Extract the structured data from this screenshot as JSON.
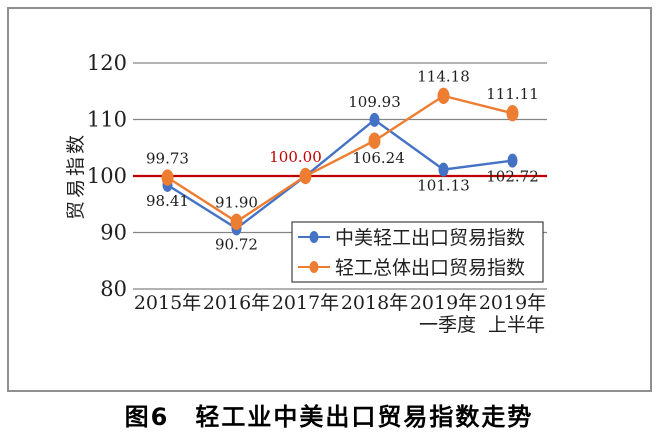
{
  "figure": {
    "caption": "图6　轻工业中美出口贸易指数走势"
  },
  "chart_data": {
    "type": "line",
    "title": "图6　轻工业中美出口贸易指数走势",
    "xlabel": "",
    "ylabel": "贸易指数",
    "ylim": [
      80,
      120
    ],
    "yticks": [
      80,
      90,
      100,
      110,
      120
    ],
    "grid": "horizontal",
    "gridline_color": "#848484",
    "baseline": {
      "value": 100,
      "color": "#c00000"
    },
    "categories": [
      {
        "line1": "2015年",
        "line2": ""
      },
      {
        "line1": "2016年",
        "line2": ""
      },
      {
        "line1": "2017年",
        "line2": ""
      },
      {
        "line1": "2018年",
        "line2": ""
      },
      {
        "line1": "2019年",
        "line2": "一季度"
      },
      {
        "line1": "2019年",
        "line2": "上半年"
      }
    ],
    "series": [
      {
        "name": "中美轻工出口贸易指数",
        "color": "#4472c4",
        "values": [
          98.41,
          90.72,
          100.0,
          109.93,
          101.13,
          102.72
        ],
        "labels": [
          {
            "text": "98.41",
            "pos": "below"
          },
          {
            "text": "90.72",
            "pos": "below"
          },
          {
            "text": "",
            "pos": "none"
          },
          {
            "text": "109.93",
            "pos": "above"
          },
          {
            "text": "101.13",
            "pos": "below"
          },
          {
            "text": "102.72",
            "pos": "below"
          }
        ]
      },
      {
        "name": "轻工总体出口贸易指数",
        "color": "#ed7d31",
        "values": [
          99.73,
          91.9,
          100.0,
          106.24,
          114.18,
          111.11
        ],
        "labels": [
          {
            "text": "99.73",
            "pos": "above"
          },
          {
            "text": "91.90",
            "pos": "above"
          },
          {
            "text": "100.00",
            "pos": "above",
            "dx": -10,
            "color": "#c00000"
          },
          {
            "text": "106.24",
            "pos": "below",
            "dx": 4
          },
          {
            "text": "114.18",
            "pos": "above"
          },
          {
            "text": "111.11",
            "pos": "above"
          }
        ]
      }
    ],
    "legend": {
      "position": "inside-bottom-right",
      "entries": [
        "中美轻工出口贸易指数",
        "轻工总体出口贸易指数"
      ]
    }
  }
}
